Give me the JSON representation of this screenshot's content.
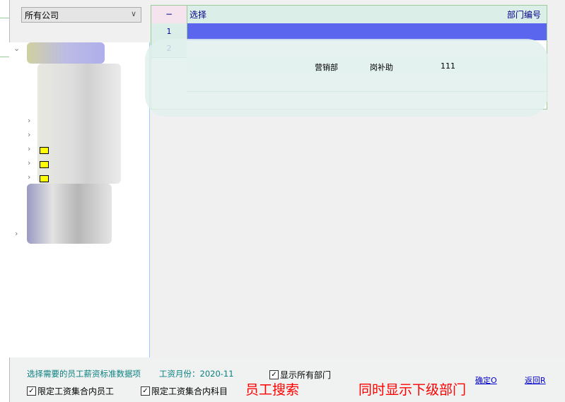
{
  "company_select": {
    "value": "所有公司"
  },
  "grid": {
    "corner": "−",
    "columns": [
      "选择",
      "部门编号"
    ],
    "rows": [
      "1",
      "2"
    ],
    "visible_fragments": [
      "营销部",
      "岗补助",
      "111"
    ]
  },
  "footer": {
    "info": "选择需要的员工薪资标准数据项",
    "month_label": "工资月份：2020-11",
    "show_all_depts": {
      "label": "显示所有部门",
      "checked": true
    },
    "limit_employees": {
      "label": "限定工资集合内员工",
      "checked": true
    },
    "limit_subjects": {
      "label": "限定工资集合内科目",
      "checked": true
    },
    "annotation_search": "员工搜索",
    "annotation_sub": "同时显示下级部门",
    "ok": "确定O",
    "back": "返回R"
  },
  "colors": {
    "selected_row": "#5a66ee",
    "annotation": "#ff0000",
    "info_text": "#0a8080"
  }
}
